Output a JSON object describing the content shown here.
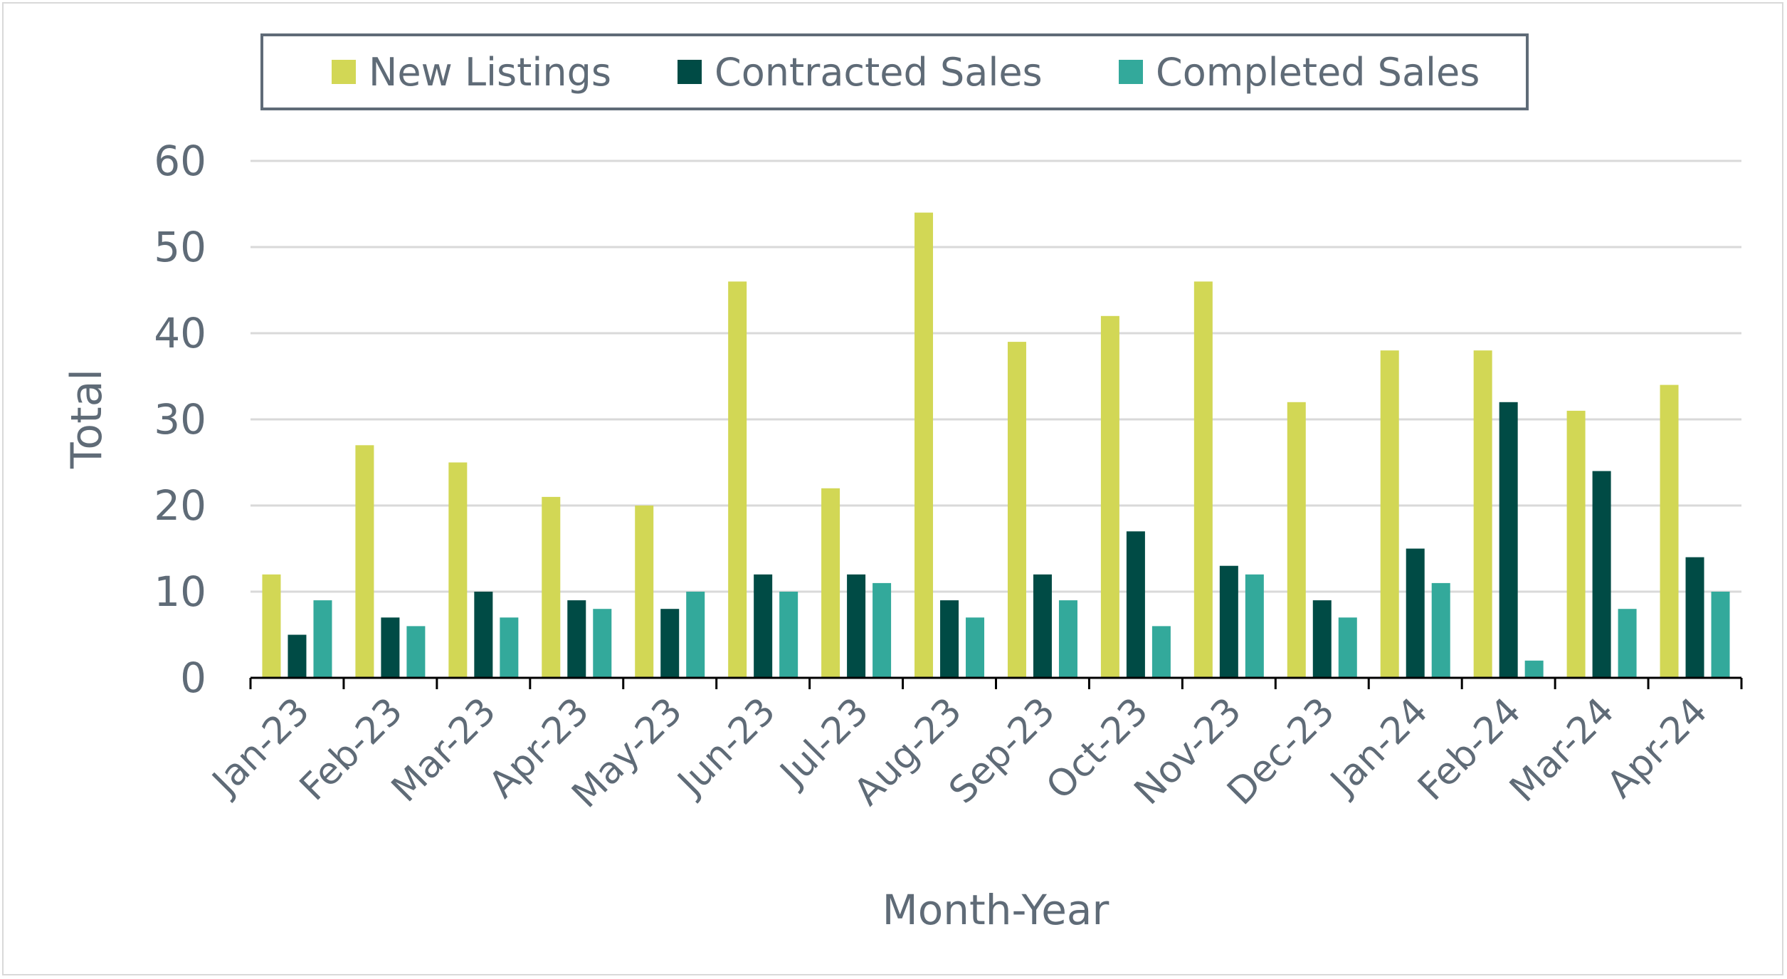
{
  "chart_data": {
    "type": "bar",
    "xlabel": "Month-Year",
    "ylabel": "Total",
    "ylim": [
      0,
      60
    ],
    "yticks": [
      "0",
      "10",
      "20",
      "30",
      "40",
      "50",
      "60"
    ],
    "grid": true,
    "legend_position": "top",
    "categories": [
      "Jan-23",
      "Feb-23",
      "Mar-23",
      "Apr-23",
      "May-23",
      "Jun-23",
      "Jul-23",
      "Aug-23",
      "Sep-23",
      "Oct-23",
      "Nov-23",
      "Dec-23",
      "Jan-24",
      "Feb-24",
      "Mar-24",
      "Apr-24"
    ],
    "series": [
      {
        "name": "New Listings",
        "color": "#d2d755",
        "values": [
          12,
          27,
          25,
          21,
          20,
          46,
          22,
          54,
          39,
          42,
          46,
          32,
          38,
          38,
          31,
          34
        ]
      },
      {
        "name": "Contracted Sales",
        "color": "#004b45",
        "values": [
          5,
          7,
          10,
          9,
          8,
          12,
          12,
          9,
          12,
          17,
          13,
          9,
          15,
          32,
          24,
          14
        ]
      },
      {
        "name": "Completed Sales",
        "color": "#33a99b",
        "values": [
          9,
          6,
          7,
          8,
          10,
          10,
          11,
          7,
          9,
          6,
          12,
          7,
          11,
          2,
          8,
          10
        ]
      }
    ]
  }
}
